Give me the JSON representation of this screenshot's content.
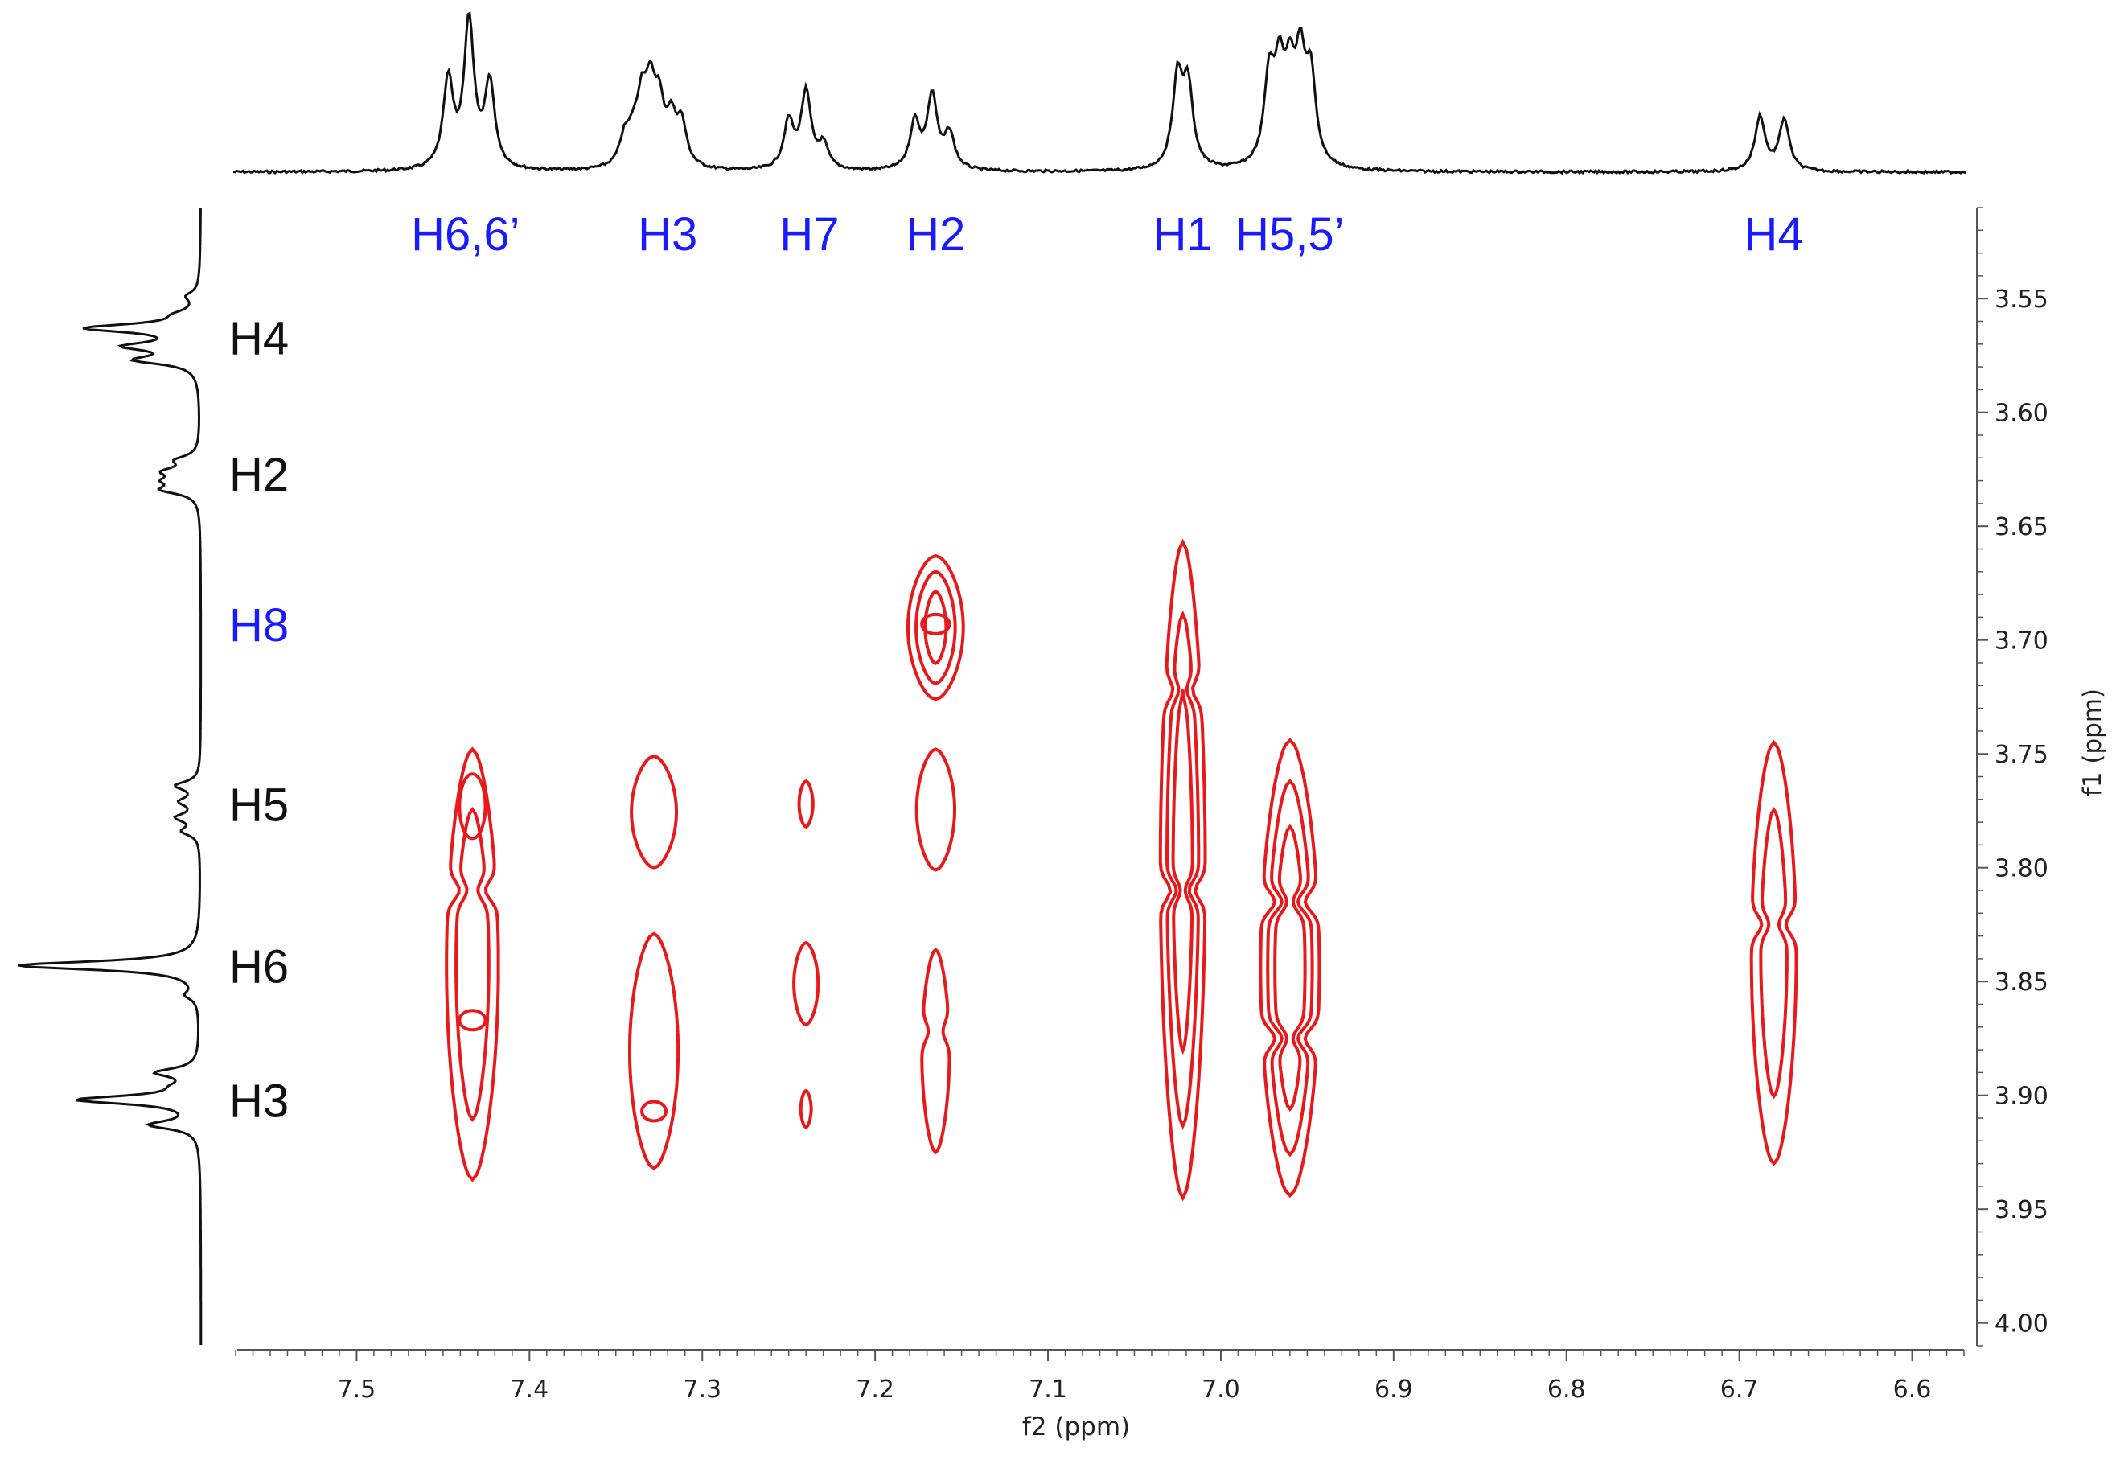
{
  "chart_data": {
    "type": "contour",
    "xlabel": "f2 (ppm)",
    "ylabel": "f1 (ppm)",
    "xlim": [
      7.57,
      6.57
    ],
    "ylim": [
      3.51,
      4.01
    ],
    "x_ticks": [
      "7.5",
      "7.4",
      "7.3",
      "7.2",
      "7.1",
      "7.0",
      "6.9",
      "6.8",
      "6.7",
      "6.6"
    ],
    "y_ticks": [
      "3.55",
      "3.60",
      "3.65",
      "3.70",
      "3.75",
      "3.80",
      "3.85",
      "3.90",
      "3.95",
      "4.00"
    ],
    "x_tick_values": [
      7.5,
      7.4,
      7.3,
      7.2,
      7.1,
      7.0,
      6.9,
      6.8,
      6.7,
      6.6
    ],
    "y_tick_values": [
      3.55,
      3.6,
      3.65,
      3.7,
      3.75,
      3.8,
      3.85,
      3.9,
      3.95,
      4.0
    ],
    "top_labels": [
      {
        "text": "H6,6’",
        "ppm": 7.437
      },
      {
        "text": "H3",
        "ppm": 7.32
      },
      {
        "text": "H7",
        "ppm": 7.238
      },
      {
        "text": "H2",
        "ppm": 7.165
      },
      {
        "text": "H1",
        "ppm": 7.022
      },
      {
        "text": "H5,5’",
        "ppm": 6.96
      },
      {
        "text": "H4",
        "ppm": 6.68
      }
    ],
    "left_labels": [
      {
        "text": "H4",
        "ppm": 3.567,
        "color": "#111111"
      },
      {
        "text": "H2",
        "ppm": 3.627,
        "color": "#111111"
      },
      {
        "text": "H8",
        "ppm": 3.693,
        "color": "#1a1aff"
      },
      {
        "text": "H5",
        "ppm": 3.772,
        "color": "#111111"
      },
      {
        "text": "H6",
        "ppm": 3.843,
        "color": "#111111"
      },
      {
        "text": "H3",
        "ppm": 3.902,
        "color": "#111111"
      }
    ],
    "contours": [
      {
        "x": 7.433,
        "y": [
          3.748,
          3.937
        ],
        "w": 0.015,
        "levels": [
          1,
          0.72
        ],
        "inner": [
          [
            3.773,
            3.013
          ],
          [
            3.867,
            0.03
          ]
        ],
        "necks": [
          3.81
        ]
      },
      {
        "x": 7.328,
        "y": [
          3.751,
          3.8
        ],
        "w": 0.013,
        "levels": [
          1
        ]
      },
      {
        "x": 7.328,
        "y": [
          3.829,
          3.932
        ],
        "w": 0.014,
        "levels": [
          1
        ],
        "inner": [
          [
            3.907,
            0.004
          ]
        ]
      },
      {
        "x": 7.24,
        "y": [
          3.762,
          3.782
        ],
        "w": 0.004,
        "levels": [
          1
        ]
      },
      {
        "x": 7.24,
        "y": [
          3.833,
          3.869
        ],
        "w": 0.007,
        "levels": [
          1
        ]
      },
      {
        "x": 7.24,
        "y": [
          3.898,
          3.914
        ],
        "w": 0.003,
        "levels": [
          1
        ]
      },
      {
        "x": 7.165,
        "y": [
          3.663,
          3.726
        ],
        "w": 0.016,
        "levels": [
          1,
          0.78,
          0.5
        ],
        "inner": [
          [
            3.693,
            0.002
          ]
        ]
      },
      {
        "x": 7.165,
        "y": [
          3.748,
          3.801
        ],
        "w": 0.011,
        "levels": [
          1
        ]
      },
      {
        "x": 7.165,
        "y": [
          3.836,
          3.925
        ],
        "w": 0.008,
        "levels": [
          1
        ],
        "necks": [
          3.872
        ]
      },
      {
        "x": 7.022,
        "y": [
          3.657,
          3.945
        ],
        "w": 0.013,
        "levels": [
          1,
          0.78,
          0.55
        ],
        "necks": [
          3.722,
          3.81
        ]
      },
      {
        "x": 6.96,
        "y": [
          3.744,
          3.944
        ],
        "w": 0.017,
        "levels": [
          1,
          0.82,
          0.62
        ],
        "necks": [
          3.815,
          3.875
        ]
      },
      {
        "x": 6.68,
        "y": [
          3.745,
          3.93
        ],
        "w": 0.013,
        "levels": [
          1,
          0.68
        ],
        "necks": [
          3.825
        ]
      }
    ],
    "top_spectrum_peaks": [
      [
        7.447,
        0.6
      ],
      [
        7.435,
        1.0
      ],
      [
        7.423,
        0.58
      ],
      [
        7.345,
        0.18
      ],
      [
        7.34,
        0.16
      ],
      [
        7.335,
        0.4
      ],
      [
        7.33,
        0.44
      ],
      [
        7.325,
        0.36
      ],
      [
        7.318,
        0.28
      ],
      [
        7.312,
        0.28
      ],
      [
        7.25,
        0.32
      ],
      [
        7.24,
        0.52
      ],
      [
        7.23,
        0.16
      ],
      [
        7.177,
        0.32
      ],
      [
        7.167,
        0.5
      ],
      [
        7.157,
        0.24
      ],
      [
        7.025,
        0.6
      ],
      [
        7.019,
        0.54
      ],
      [
        6.972,
        0.58
      ],
      [
        6.966,
        0.58
      ],
      [
        6.96,
        0.52
      ],
      [
        6.954,
        0.64
      ],
      [
        6.948,
        0.58
      ],
      [
        6.688,
        0.37
      ],
      [
        6.674,
        0.35
      ]
    ],
    "left_spectrum_peaks": [
      [
        3.549,
        0.06
      ],
      [
        3.557,
        0.08
      ],
      [
        3.563,
        0.6
      ],
      [
        3.571,
        0.36
      ],
      [
        3.577,
        0.32
      ],
      [
        3.621,
        0.11
      ],
      [
        3.626,
        0.16
      ],
      [
        3.63,
        0.14
      ],
      [
        3.634,
        0.18
      ],
      [
        3.764,
        0.13
      ],
      [
        3.771,
        0.1
      ],
      [
        3.778,
        0.12
      ],
      [
        3.784,
        0.09
      ],
      [
        3.843,
        1.0
      ],
      [
        3.856,
        0.06
      ],
      [
        3.89,
        0.22
      ],
      [
        3.896,
        0.07
      ],
      [
        3.902,
        0.66
      ],
      [
        3.913,
        0.26
      ]
    ]
  }
}
